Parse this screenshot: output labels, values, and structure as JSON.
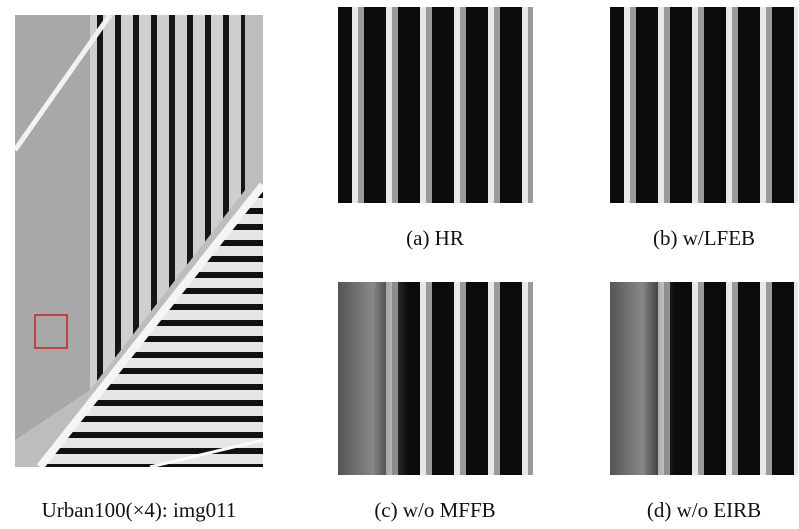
{
  "figure": {
    "main_caption": "Urban100(×4): img011",
    "panels": [
      {
        "caption": "(a) HR"
      },
      {
        "caption": "(b) w/LFEB"
      },
      {
        "caption": "(c) w/o MFFB"
      },
      {
        "caption": "(d) w/o EIRB"
      }
    ]
  }
}
